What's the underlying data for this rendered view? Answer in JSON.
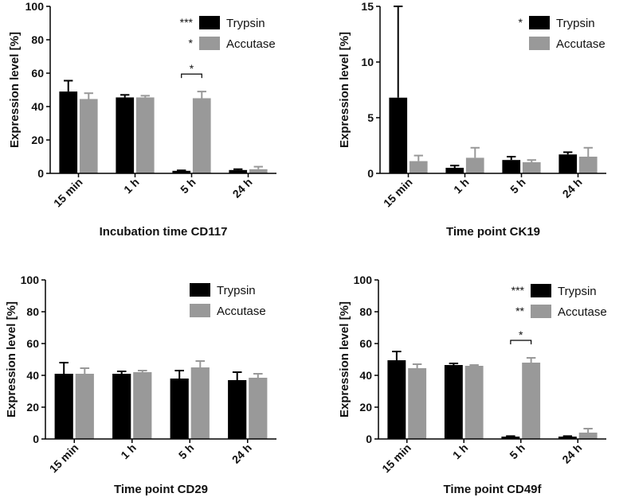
{
  "chart_data": [
    {
      "type": "bar",
      "title": "Incubation time CD117",
      "ylabel": "Expression level [%]",
      "xlabel": "",
      "ylim": [
        0,
        100
      ],
      "yticks": [
        0,
        20,
        40,
        60,
        80,
        100
      ],
      "categories": [
        "15 min",
        "1 h",
        "5 h",
        "24 h"
      ],
      "series": [
        {
          "name": "Trypsin",
          "color": "#000000",
          "values": [
            49,
            45.5,
            1.5,
            2
          ],
          "errors": [
            6.5,
            1.5,
            0.3,
            0.5
          ],
          "legend_mark": "***"
        },
        {
          "name": "Accutase",
          "color": "#999999",
          "values": [
            44.5,
            45.5,
            45,
            2.5
          ],
          "errors": [
            3.5,
            1,
            4,
            1.5
          ],
          "legend_mark": "*"
        }
      ],
      "annotations": [
        {
          "text": "*",
          "category": "5 h"
        }
      ]
    },
    {
      "type": "bar",
      "title": "Time point CK19",
      "ylabel": "Expression level [%]",
      "xlabel": "",
      "ylim": [
        0,
        15
      ],
      "yticks": [
        0,
        5,
        10,
        15
      ],
      "categories": [
        "15 min",
        "1 h",
        "5 h",
        "24 h"
      ],
      "series": [
        {
          "name": "Trypsin",
          "color": "#000000",
          "values": [
            6.8,
            0.5,
            1.2,
            1.7
          ],
          "errors": [
            9,
            0.2,
            0.3,
            0.2
          ],
          "legend_mark": "*"
        },
        {
          "name": "Accutase",
          "color": "#999999",
          "values": [
            1.1,
            1.4,
            1.0,
            1.5
          ],
          "errors": [
            0.5,
            0.9,
            0.2,
            0.8
          ],
          "legend_mark": ""
        }
      ],
      "annotations": []
    },
    {
      "type": "bar",
      "title": "Time point CD29",
      "ylabel": "Expression level [%]",
      "xlabel": "",
      "ylim": [
        0,
        100
      ],
      "yticks": [
        0,
        20,
        40,
        60,
        80,
        100
      ],
      "categories": [
        "15 min",
        "1 h",
        "5 h",
        "24 h"
      ],
      "series": [
        {
          "name": "Trypsin",
          "color": "#000000",
          "values": [
            41,
            41,
            38,
            37
          ],
          "errors": [
            7,
            1.5,
            5,
            5
          ],
          "legend_mark": ""
        },
        {
          "name": "Accutase",
          "color": "#999999",
          "values": [
            41,
            42,
            45,
            38.5
          ],
          "errors": [
            3.5,
            1,
            4,
            2.5
          ],
          "legend_mark": ""
        }
      ],
      "annotations": []
    },
    {
      "type": "bar",
      "title": "Time point CD49f",
      "ylabel": "Expression level [%]",
      "xlabel": "",
      "ylim": [
        0,
        100
      ],
      "yticks": [
        0,
        20,
        40,
        60,
        80,
        100
      ],
      "categories": [
        "15 min",
        "1 h",
        "5 h",
        "24 h"
      ],
      "series": [
        {
          "name": "Trypsin",
          "color": "#000000",
          "values": [
            49.5,
            46.5,
            1.5,
            1.5
          ],
          "errors": [
            5.5,
            1,
            0.3,
            0.3
          ],
          "legend_mark": "***"
        },
        {
          "name": "Accutase",
          "color": "#999999",
          "values": [
            44.5,
            46,
            48,
            4
          ],
          "errors": [
            2.5,
            0.5,
            3,
            2.5
          ],
          "legend_mark": "**"
        }
      ],
      "annotations": [
        {
          "text": "*",
          "category": "5 h"
        }
      ]
    }
  ]
}
